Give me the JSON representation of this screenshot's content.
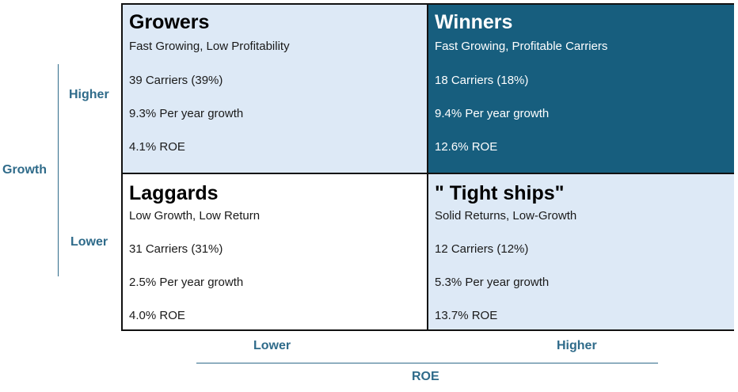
{
  "axes": {
    "y_title": "Growth",
    "y_high": "Higher",
    "y_low": "Lower",
    "x_title": "ROE",
    "x_low": "Lower",
    "x_high": "Higher"
  },
  "colors": {
    "light_fill": "#dde9f6",
    "dark_fill": "#175e7e",
    "axis": "#2f6b8a"
  },
  "quadrants": {
    "growers": {
      "title": "Growers",
      "subtitle": "Fast Growing, Low Profitability",
      "carriers": "39 Carriers (39%)",
      "growth": "9.3% Per year growth",
      "roe": "4.1% ROE"
    },
    "winners": {
      "title": "Winners",
      "subtitle": "Fast Growing, Profitable Carriers",
      "carriers": "18 Carriers (18%)",
      "growth": "9.4% Per year growth",
      "roe": "12.6% ROE"
    },
    "laggards": {
      "title": "Laggards",
      "subtitle": "Low Growth, Low Return",
      "carriers": "31 Carriers (31%)",
      "growth": "2.5% Per year growth",
      "roe": "4.0% ROE"
    },
    "tight_ships": {
      "title": "\" Tight ships\"",
      "subtitle": "Solid Returns, Low-Growth",
      "carriers": "12 Carriers (12%)",
      "growth": "5.3% Per year growth",
      "roe": "13.7% ROE"
    }
  }
}
